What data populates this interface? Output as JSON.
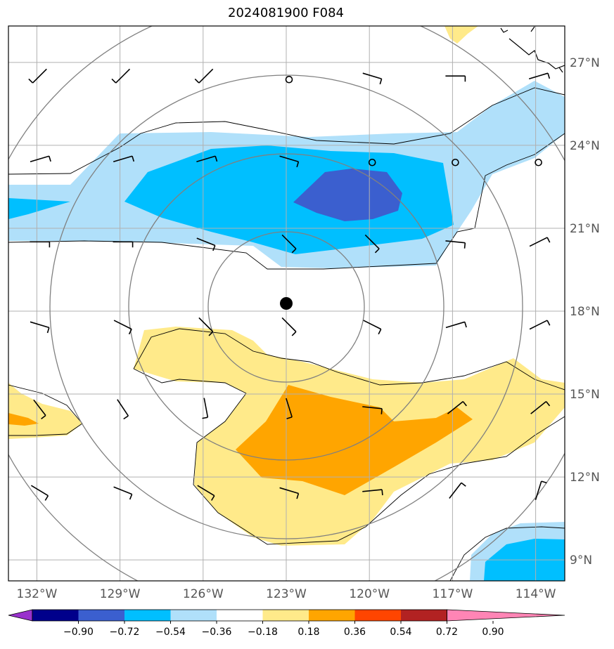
{
  "title": "2024081900 F084",
  "longitude_labels": [
    "132°W",
    "129°W",
    "126°W",
    "123°W",
    "120°W",
    "117°W",
    "114°W"
  ],
  "latitude_labels": [
    "27°N",
    "24°N",
    "21°N",
    "18°N",
    "15°N",
    "12°N",
    "9°N"
  ],
  "colorbar": {
    "levels": [
      "−0.90",
      "−0.72",
      "−0.54",
      "−0.36",
      "−0.18",
      "0.18",
      "0.36",
      "0.54",
      "0.72",
      "0.90"
    ],
    "colors": [
      "#9932cc",
      "#00008b",
      "#3b5fcf",
      "#00bfff",
      "#b0e0fa",
      "#ffffff",
      "#ffea8a",
      "#ffa500",
      "#ff4500",
      "#b22222",
      "#ff85b5"
    ]
  },
  "storm_center": {
    "lon": "123°W",
    "lat": "18.3°N"
  },
  "range_rings": 4,
  "wind_barbs_grid": {
    "lons": [
      -132,
      -129,
      -126,
      -123,
      -120,
      -117,
      -114
    ],
    "lats": [
      26,
      23,
      20,
      17,
      14,
      11
    ]
  },
  "colors": {
    "grid": "#b0b0b0",
    "ring": "#808080",
    "coast": "#000000"
  }
}
